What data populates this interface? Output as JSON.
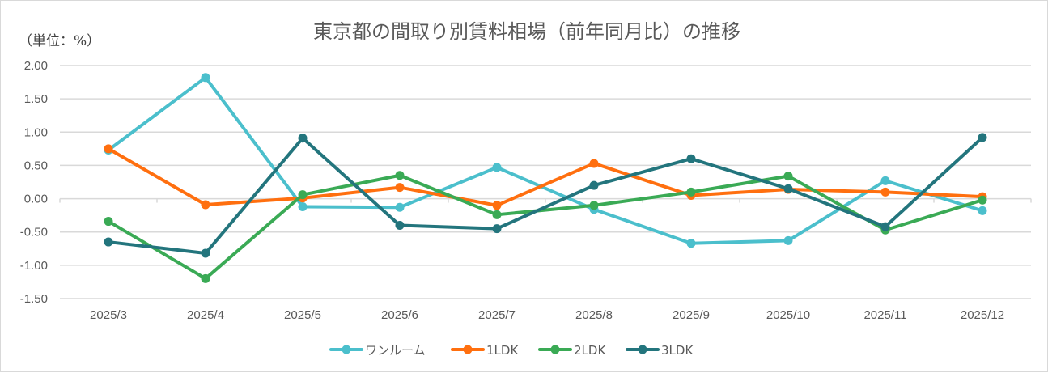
{
  "chart_data": {
    "type": "line",
    "title": "東京都の間取り別賃料相場（前年同月比）の推移",
    "unit_label": "（単位：%）",
    "xlabel": "",
    "ylabel": "%",
    "ylim": [
      -1.5,
      2.0
    ],
    "yticks": [
      2.0,
      1.5,
      1.0,
      0.5,
      0.0,
      -0.5,
      -1.0,
      -1.5
    ],
    "ytick_labels": [
      "2.00",
      "1.50",
      "1.00",
      "0.50",
      "0.00",
      "-0.50",
      "-1.00",
      "-1.50"
    ],
    "grid": true,
    "legend_position": "bottom",
    "categories": [
      "2025/3",
      "2025/4",
      "2025/5",
      "2025/6",
      "2025/7",
      "2025/8",
      "2025/9",
      "2025/10",
      "2025/11",
      "2025/12"
    ],
    "series": [
      {
        "name": "ワンルーム",
        "color": "#4bbfcc",
        "values": [
          0.73,
          1.82,
          -0.12,
          -0.13,
          0.47,
          -0.16,
          -0.67,
          -0.63,
          0.27,
          -0.18
        ]
      },
      {
        "name": "1LDK",
        "color": "#ff6f0f",
        "values": [
          0.75,
          -0.09,
          0.01,
          0.17,
          -0.1,
          0.53,
          0.05,
          0.14,
          0.1,
          0.03
        ]
      },
      {
        "name": "2LDK",
        "color": "#3aaa55",
        "values": [
          -0.34,
          -1.2,
          0.06,
          0.35,
          -0.24,
          -0.1,
          0.1,
          0.34,
          -0.47,
          -0.02
        ]
      },
      {
        "name": "3LDK",
        "color": "#23757d",
        "values": [
          -0.65,
          -0.82,
          0.91,
          -0.4,
          -0.45,
          0.2,
          0.6,
          0.15,
          -0.42,
          0.92
        ]
      }
    ]
  }
}
